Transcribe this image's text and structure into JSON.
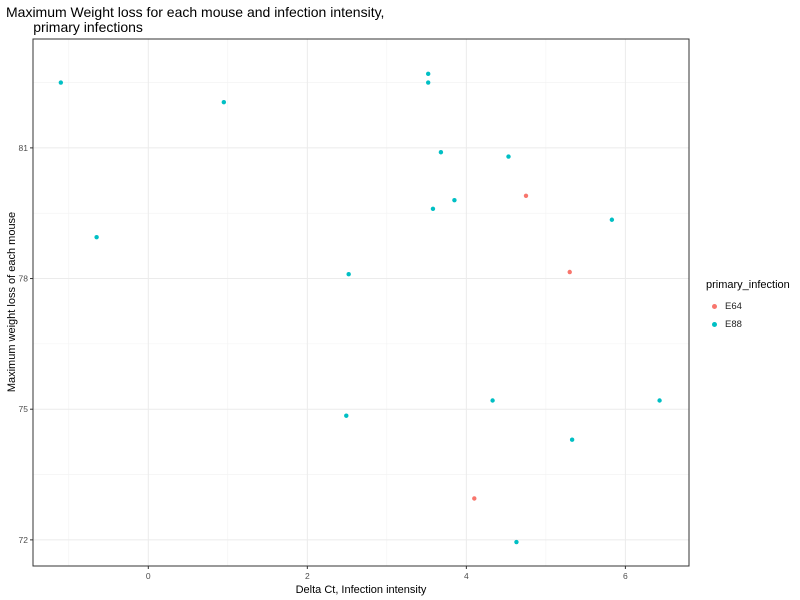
{
  "chart_data": {
    "type": "scatter",
    "title_lines": [
      "Maximum Weight loss for each mouse and infection intensity,",
      "       primary infections"
    ],
    "xlabel": "Delta Ct, Infection intensity",
    "ylabel": "Maximum weight loss of each mouse",
    "xlim": [
      -1.45,
      6.8
    ],
    "ylim": [
      71.4,
      83.5
    ],
    "xticks": [
      0,
      2,
      4,
      6
    ],
    "yticks": [
      72,
      75,
      78,
      81
    ],
    "grid": true,
    "legend": {
      "title": "primary_infection",
      "position": "right",
      "entries": [
        {
          "name": "E64",
          "color": "#F8766D"
        },
        {
          "name": "E88",
          "color": "#00BFC4"
        }
      ]
    },
    "series": [
      {
        "name": "E64",
        "color": "#F8766D",
        "points": [
          {
            "x": 4.75,
            "y": 79.9
          },
          {
            "x": 5.3,
            "y": 78.15
          },
          {
            "x": 4.1,
            "y": 72.95
          }
        ]
      },
      {
        "name": "E88",
        "color": "#00BFC4",
        "points": [
          {
            "x": -1.1,
            "y": 82.5
          },
          {
            "x": 0.95,
            "y": 82.05
          },
          {
            "x": 3.52,
            "y": 82.7
          },
          {
            "x": 3.52,
            "y": 82.5
          },
          {
            "x": 3.68,
            "y": 80.9
          },
          {
            "x": 4.53,
            "y": 80.8
          },
          {
            "x": 3.85,
            "y": 79.8
          },
          {
            "x": 3.58,
            "y": 79.6
          },
          {
            "x": 5.83,
            "y": 79.35
          },
          {
            "x": -0.65,
            "y": 78.95
          },
          {
            "x": 2.52,
            "y": 78.1
          },
          {
            "x": 2.49,
            "y": 74.85
          },
          {
            "x": 4.33,
            "y": 75.2
          },
          {
            "x": 6.43,
            "y": 75.2
          },
          {
            "x": 5.33,
            "y": 74.3
          },
          {
            "x": 4.63,
            "y": 71.95
          }
        ]
      }
    ]
  }
}
